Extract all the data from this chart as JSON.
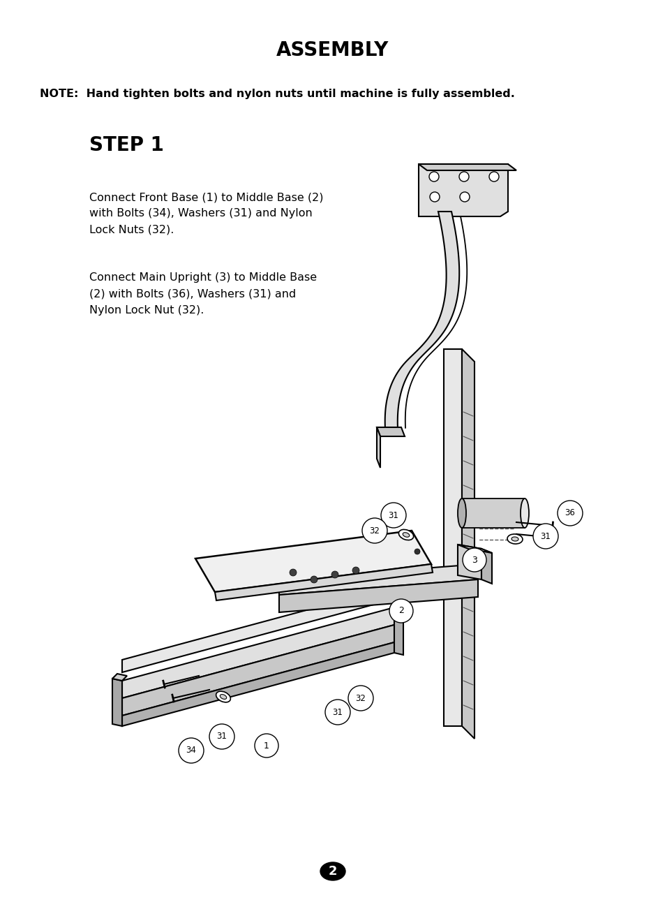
{
  "bg_color": "#ffffff",
  "title": "ASSEMBLY",
  "title_fontsize": 20,
  "note_text": "NOTE:  Hand tighten bolts and nylon nuts until machine is fully assembled.",
  "note_fontsize": 11.5,
  "step_title": "STEP 1",
  "step_fontsize": 20,
  "para1": "Connect Front Base (1) to Middle Base (2)\nwith Bolts (34), Washers (31) and Nylon\nLock Nuts (32).",
  "para2": "Connect Main Upright (3) to Middle Base\n(2) with Bolts (36), Washers (31) and\nNylon Lock Nut (32).",
  "para_fontsize": 11.5,
  "page_number": "2",
  "page_number_fontsize": 13
}
